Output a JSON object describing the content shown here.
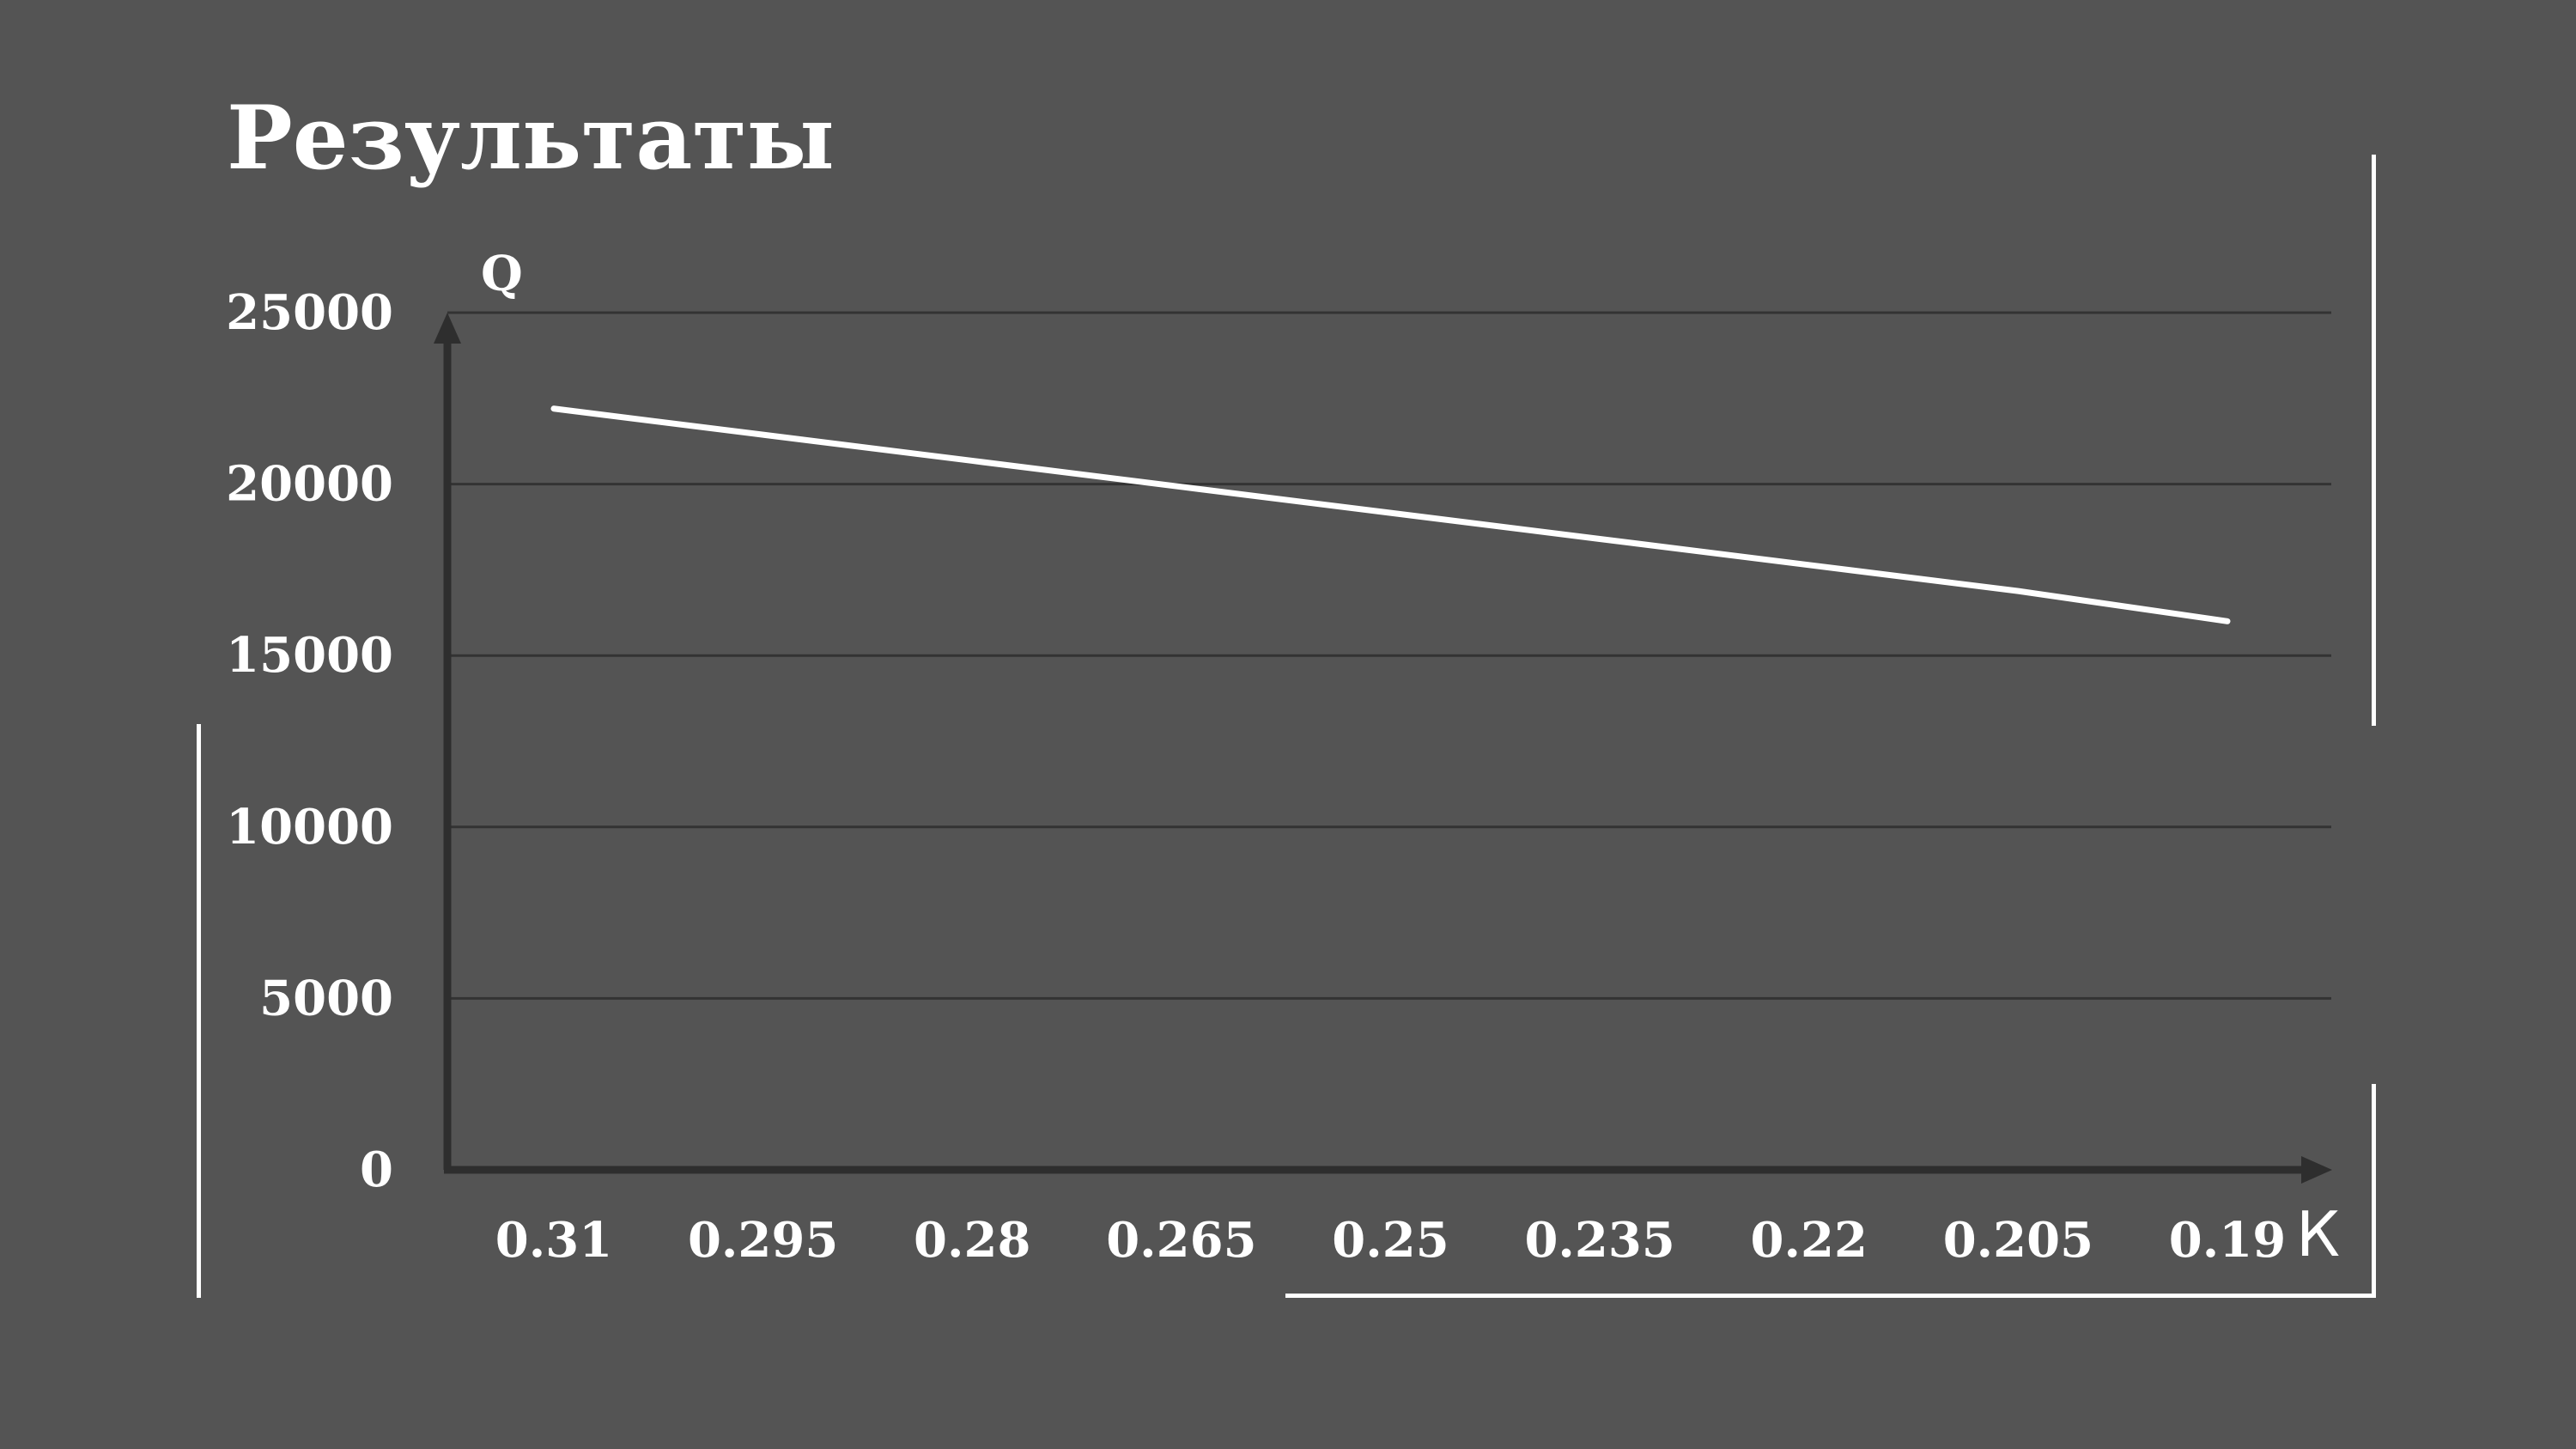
{
  "slide": {
    "title": "Результаты"
  },
  "chart_data": {
    "type": "line",
    "title": "",
    "xlabel": "К",
    "ylabel": "Q",
    "x": [
      "0.31",
      "0.295",
      "0.28",
      "0.265",
      "0.25",
      "0.235",
      "0.22",
      "0.205",
      "0.19"
    ],
    "series": [
      {
        "values": [
          22200,
          21440,
          20680,
          19920,
          19160,
          18400,
          17640,
          16880,
          16000
        ]
      }
    ],
    "y_ticks": [
      "0",
      "5000",
      "10000",
      "15000",
      "20000",
      "25000"
    ],
    "ylim": [
      0,
      25000
    ],
    "grid": true,
    "legend": "none"
  },
  "colors": {
    "background": "#545454",
    "text": "#ffffff",
    "series_line": "#ffffff",
    "axis": "#2e2e2e",
    "grid": "#333333",
    "frame": "#ffffff"
  }
}
